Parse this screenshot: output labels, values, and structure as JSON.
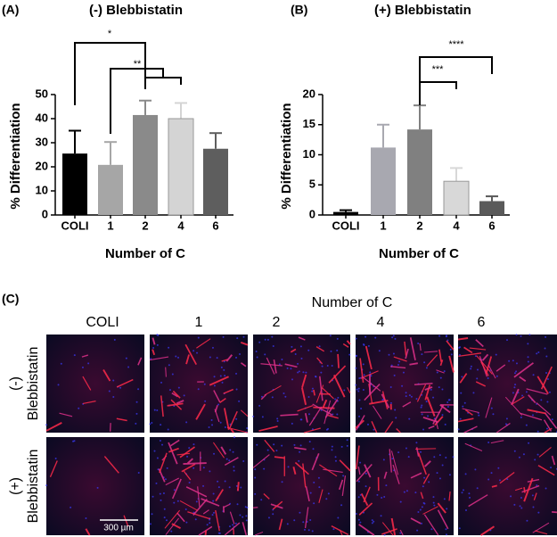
{
  "chart_data": [
    {
      "type": "bar",
      "panel": "(A)",
      "title": "(-) Blebbistatin",
      "y_label": "% Differentiation",
      "x_label": "Number of C",
      "categories": [
        "COLI",
        "1",
        "2",
        "4",
        "6"
      ],
      "values": [
        25.5,
        20.8,
        41.5,
        40,
        27.5
      ],
      "errors": [
        9.5,
        9.5,
        6,
        6.5,
        6.5
      ],
      "colors": [
        "#000000",
        "#a6a6a6",
        "#8a8a8a",
        "#d4d4d4",
        "#5e5e5e"
      ],
      "ylim": [
        0,
        50
      ],
      "yticks": [
        0,
        10,
        20,
        30,
        40,
        50
      ],
      "annotations": [
        "*",
        "**"
      ]
    },
    {
      "type": "bar",
      "panel": "(B)",
      "title": "(+) Blebbistatin",
      "y_label": "% Differentiation",
      "x_label": "Number of C",
      "categories": [
        "COLI",
        "1",
        "2",
        "4",
        "6"
      ],
      "values": [
        0.5,
        11.2,
        14.2,
        5.6,
        2.3
      ],
      "errors": [
        0.3,
        3.8,
        4,
        2.2,
        0.8
      ],
      "colors": [
        "#000000",
        "#a8a8b0",
        "#808080",
        "#d8d8d8",
        "#5a5a5a"
      ],
      "ylim": [
        0,
        20
      ],
      "yticks": [
        0,
        5,
        10,
        15,
        20
      ],
      "annotations": [
        "****",
        "***"
      ]
    }
  ],
  "panel_c": {
    "label": "(C)",
    "title": "Number of C",
    "columns": [
      "COLI",
      "1",
      "2",
      "4",
      "6"
    ],
    "rows": [
      [
        "(-)",
        "Blebbistatin"
      ],
      [
        "(+)",
        "Blebbistatin"
      ]
    ],
    "scale_bar": "300 µm"
  }
}
